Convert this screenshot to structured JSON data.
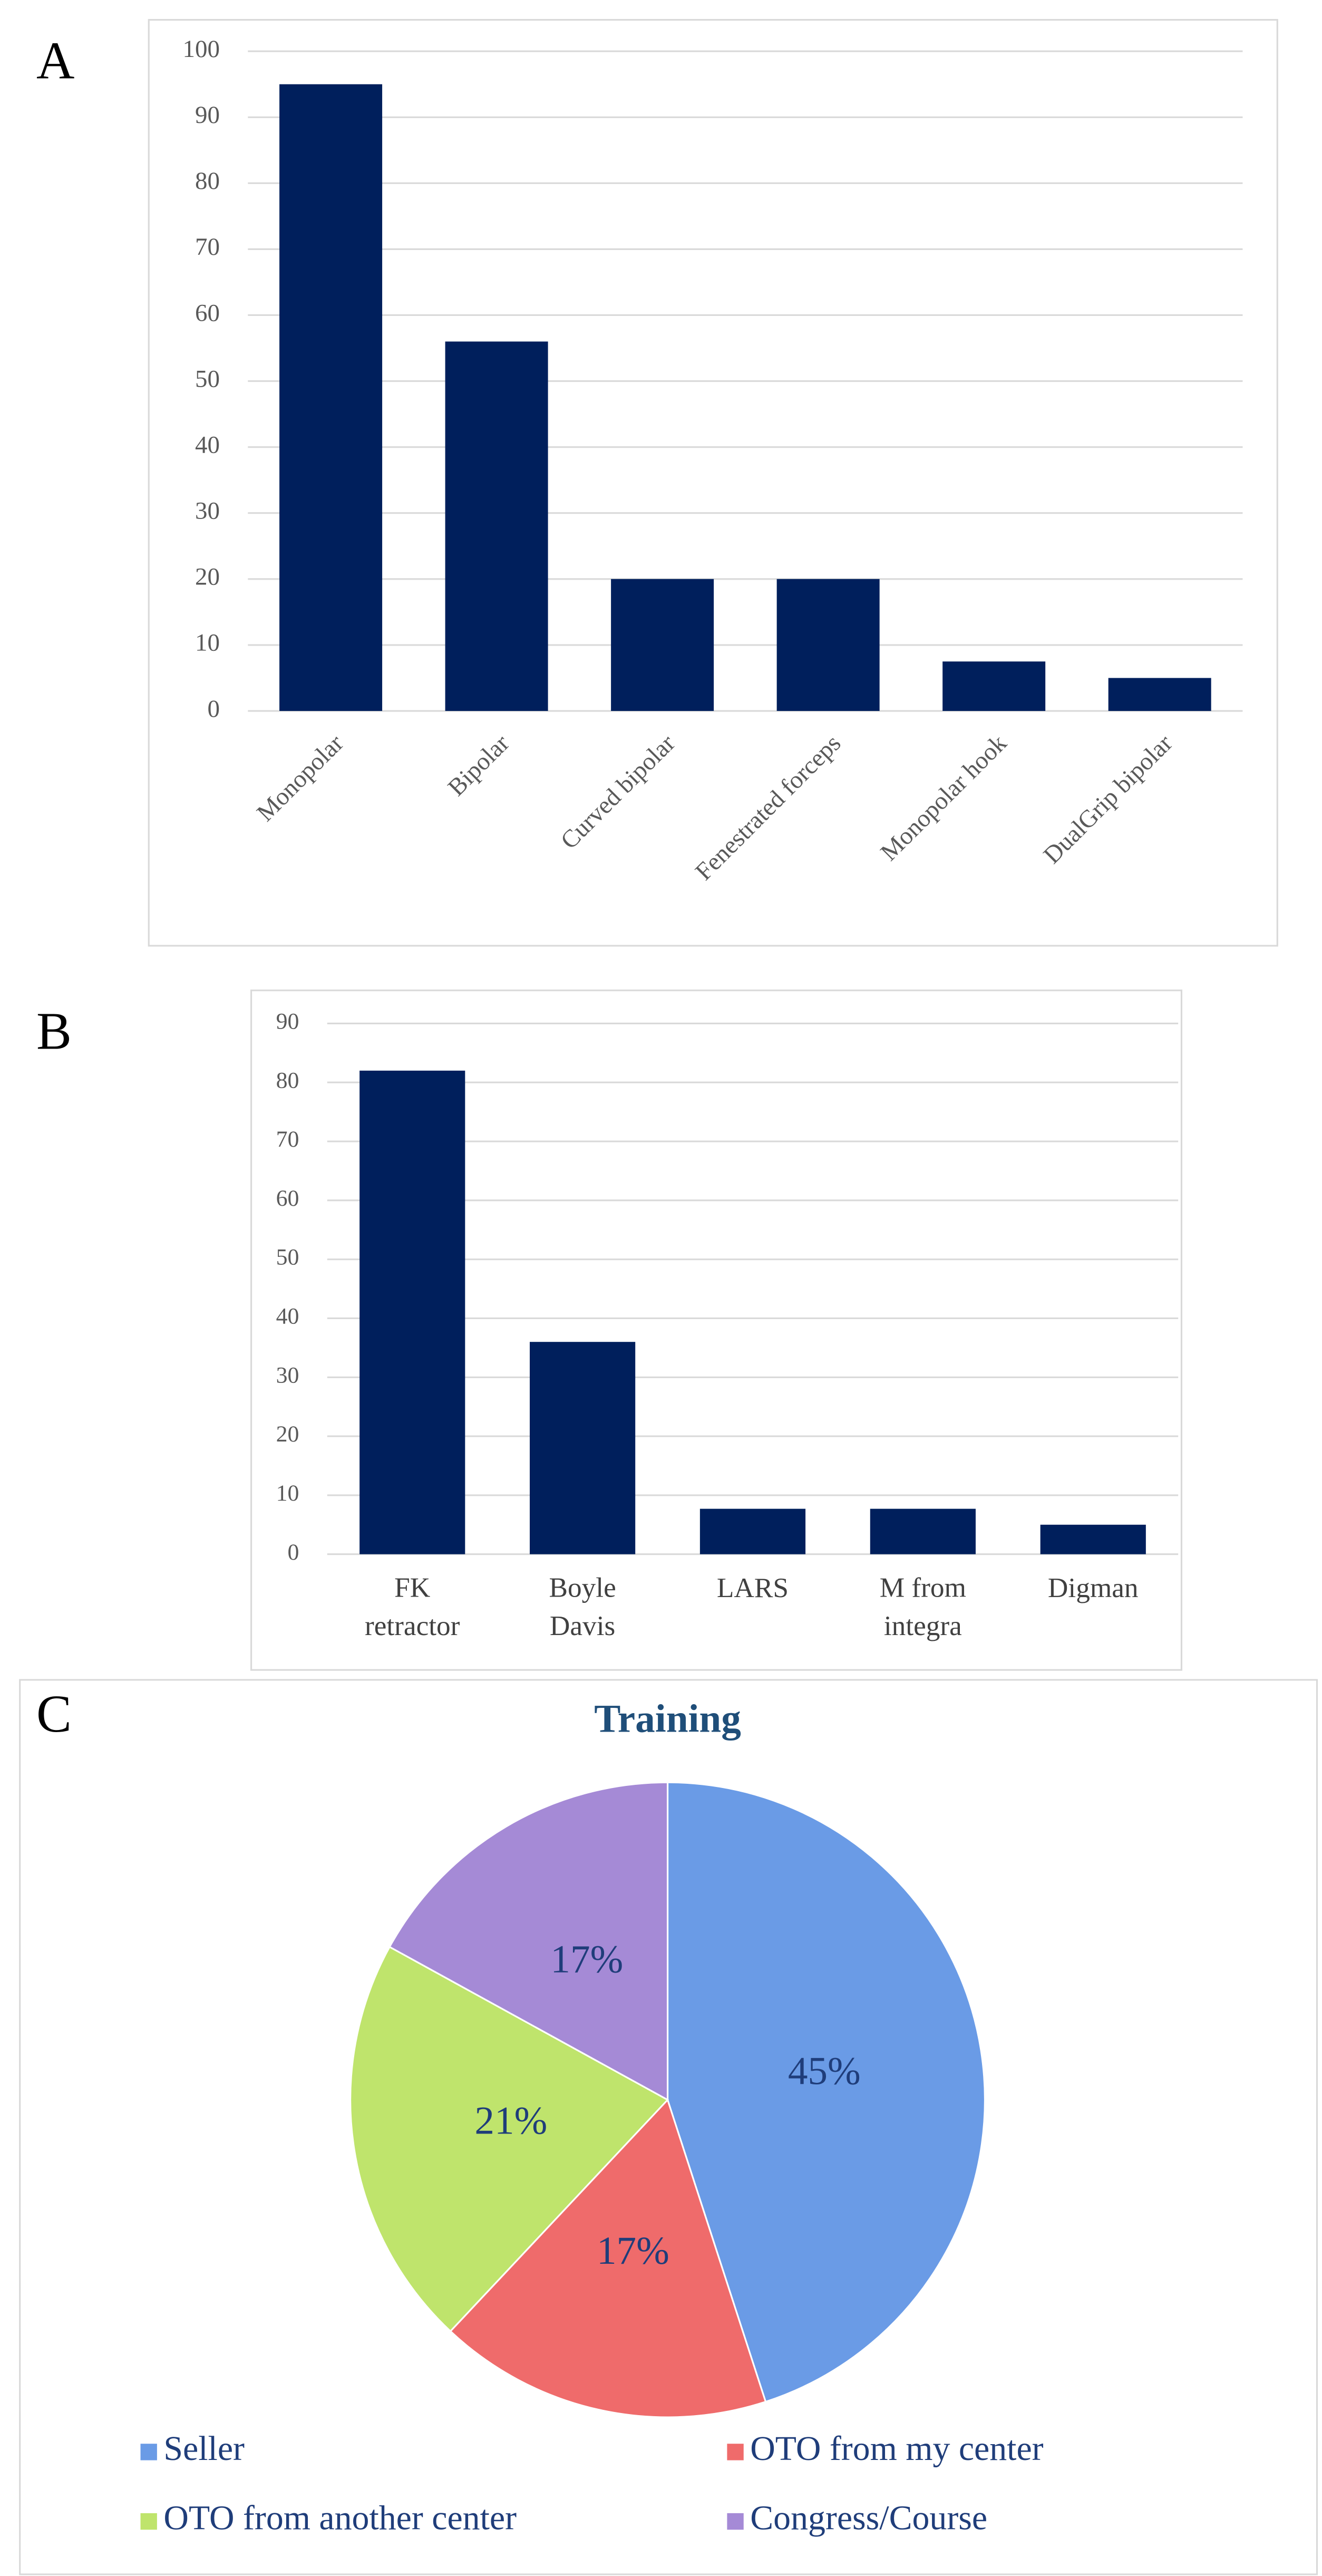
{
  "chart_data": [
    {
      "type": "bar",
      "label": "A",
      "categories": [
        "Monopolar",
        "Bipolar",
        "Curved bipolar",
        "Fenestrated forceps",
        "Monopolar hook",
        "DualGrip bipolar"
      ],
      "values": [
        95,
        56,
        20,
        20,
        7.5,
        5
      ],
      "color": "#001f5c",
      "ylim": [
        0,
        100
      ],
      "yticks": [
        0,
        10,
        20,
        30,
        40,
        50,
        60,
        70,
        80,
        90,
        100
      ],
      "grid": true,
      "label_rotation": -45
    },
    {
      "type": "bar",
      "label": "B",
      "categories": [
        "FK retractor",
        "Boyle Davis",
        "LARS",
        "M from integra",
        "Digman"
      ],
      "values": [
        82,
        36,
        7.7,
        7.7,
        5
      ],
      "color": "#001f5c",
      "ylim": [
        0,
        90
      ],
      "yticks": [
        0,
        10,
        20,
        30,
        40,
        50,
        60,
        70,
        80,
        90
      ],
      "grid": true,
      "label_rotation": 0
    },
    {
      "type": "pie",
      "label": "C",
      "title": "Training",
      "categories": [
        "Seller",
        "OTO from my center",
        "OTO from another center",
        "Congress/Course"
      ],
      "values": [
        45,
        17,
        21,
        17
      ],
      "value_labels": [
        "45%",
        "17%",
        "21%",
        "17%"
      ],
      "colors": [
        "#6a9be6",
        "#ef6b6b",
        "#bfe46c",
        "#a58ad6"
      ],
      "legend": "bottom"
    }
  ]
}
